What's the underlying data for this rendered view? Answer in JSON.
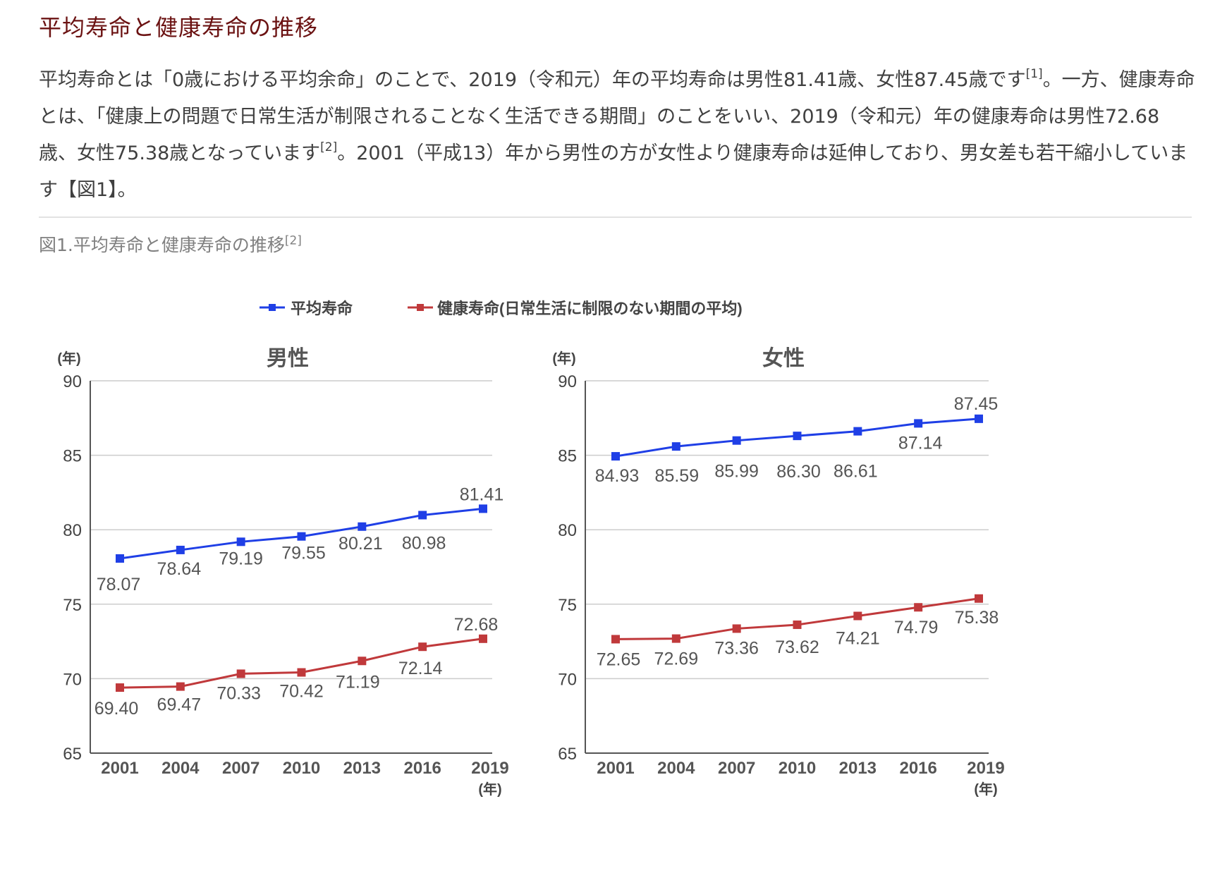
{
  "page": {
    "title": "平均寿命と健康寿命の推移",
    "paragraph": {
      "s1": "平均寿命とは「0歳における平均余命」のことで、2019（令和元）年の平均寿命は男性81.41歳、女性87.45歳です",
      "ref1": "[1]",
      "s2": "。一方、健康寿命とは、「健康上の問題で日常生活が制限されることなく生活できる期間」のことをいい、2019（令和元）年の健康寿命は男性72.68歳、女性75.38歳となっています",
      "ref2": "[2]",
      "s3": "。2001（平成13）年から男性の方が女性より健康寿命は延伸しており、男女差も若干縮小しています【図1】。"
    },
    "figure_caption": "図1.平均寿命と健康寿命の推移",
    "figure_ref": "[2]"
  },
  "legend": {
    "life": "平均寿命",
    "healthy": "健康寿命(日常生活に制限のない期間の平均)"
  },
  "colors": {
    "life": "#1f3fe6",
    "healthy": "#c0393b",
    "grid": "#cccccc",
    "axis": "#555555",
    "text": "#444444"
  },
  "chart_data": [
    {
      "type": "line",
      "title": "男性",
      "ylabel": "(年)",
      "xlabel": "(年)",
      "ylim": [
        65,
        90
      ],
      "yticks": [
        90,
        85,
        80,
        75,
        70,
        65
      ],
      "categories": [
        "2001",
        "2004",
        "2007",
        "2010",
        "2013",
        "2016",
        "2019"
      ],
      "series": [
        {
          "name": "平均寿命",
          "values": [
            78.07,
            78.64,
            79.19,
            79.55,
            80.21,
            80.98,
            81.41
          ],
          "labels": [
            "78.07",
            "78.64",
            "79.19",
            "79.55",
            "80.21",
            "80.98",
            "81.41"
          ]
        },
        {
          "name": "健康寿命(日常生活に制限のない期間の平均)",
          "values": [
            69.4,
            69.47,
            70.33,
            70.42,
            71.19,
            72.14,
            72.68
          ],
          "labels": [
            "69.40",
            "69.47",
            "70.33",
            "70.42",
            "71.19",
            "72.14",
            "72.68"
          ]
        }
      ]
    },
    {
      "type": "line",
      "title": "女性",
      "ylabel": "(年)",
      "xlabel": "(年)",
      "ylim": [
        65,
        90
      ],
      "yticks": [
        90,
        85,
        80,
        75,
        70,
        65
      ],
      "categories": [
        "2001",
        "2004",
        "2007",
        "2010",
        "2013",
        "2016",
        "2019"
      ],
      "series": [
        {
          "name": "平均寿命",
          "values": [
            84.93,
            85.59,
            85.99,
            86.3,
            86.61,
            87.14,
            87.45
          ],
          "labels": [
            "84.93",
            "85.59",
            "85.99",
            "86.30",
            "86.61",
            "87.14",
            "87.45"
          ]
        },
        {
          "name": "健康寿命(日常生活に制限のない期間の平均)",
          "values": [
            72.65,
            72.69,
            73.36,
            73.62,
            74.21,
            74.79,
            75.38
          ],
          "labels": [
            "72.65",
            "72.69",
            "73.36",
            "73.62",
            "74.21",
            "74.79",
            "75.38"
          ]
        }
      ]
    }
  ]
}
